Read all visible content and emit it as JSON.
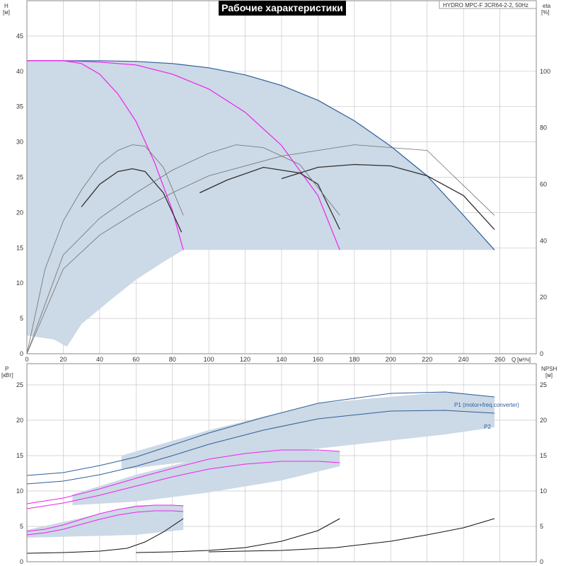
{
  "title": "Рабочие характеристики",
  "model": "HYDRO MPC-F 3CR64-2-2, 50Hz",
  "colors": {
    "envelope": "#ccd9e6",
    "max_curve": "#2f5f9a",
    "partial_speed": "#ee22ee",
    "efficiency": "#303030",
    "npsh": "#111111",
    "grid": "#c8c8c8"
  },
  "chart_data": [
    {
      "type": "line",
      "title": "Рабочие характеристики",
      "ylabel": "H",
      "yunit": "[м]",
      "y2label": "eta",
      "y2unit": "[%]",
      "xlabel": "Q",
      "xunit": "[м³/ч]",
      "xlim": [
        0,
        280
      ],
      "ylim": [
        0,
        50
      ],
      "y2lim": [
        0,
        125
      ],
      "xticks": [
        "0",
        "20",
        "40",
        "60",
        "80",
        "100",
        "120",
        "140",
        "160",
        "180",
        "200",
        "220",
        "240",
        "260"
      ],
      "yticks": [
        "0",
        "5",
        "10",
        "15",
        "20",
        "25",
        "30",
        "35",
        "40",
        "45"
      ],
      "y2ticks": [
        "0",
        "20",
        "40",
        "60",
        "80",
        "100"
      ],
      "grid": true,
      "series": [
        {
          "role": "head-3-pumps",
          "color": "max_curve",
          "x": [
            0,
            20,
            40,
            60,
            80,
            100,
            120,
            140,
            160,
            180,
            200,
            220,
            240,
            257
          ],
          "y": [
            41.5,
            41.5,
            41.5,
            41.4,
            41.1,
            40.5,
            39.5,
            38,
            35.9,
            33,
            29.4,
            25.2,
            19.6,
            14.7
          ]
        },
        {
          "role": "head-2-pumps",
          "color": "partial_speed",
          "x": [
            0,
            20,
            40,
            60,
            80,
            100,
            120,
            140,
            160,
            172
          ],
          "y": [
            41.5,
            41.5,
            41.3,
            40.9,
            39.6,
            37.5,
            34.2,
            29.5,
            22.4,
            14.7
          ]
        },
        {
          "role": "head-1-pump",
          "color": "partial_speed",
          "x": [
            0,
            20,
            30,
            40,
            50,
            60,
            70,
            80,
            86
          ],
          "y": [
            41.5,
            41.5,
            41.1,
            39.6,
            36.8,
            32.9,
            27.2,
            20.3,
            14.7
          ]
        },
        {
          "role": "eta-1-pump",
          "color": "efficiency",
          "x": [
            30,
            40,
            50,
            58,
            65,
            75,
            85
          ],
          "y": [
            52,
            60,
            64.5,
            65.5,
            64.5,
            57,
            43
          ]
        },
        {
          "role": "eta-2-pumps",
          "color": "efficiency",
          "x": [
            95,
            110,
            130,
            150,
            160,
            172
          ],
          "y": [
            57,
            61.5,
            66,
            64,
            60,
            44
          ]
        },
        {
          "role": "eta-3-pumps",
          "color": "efficiency",
          "x": [
            140,
            160,
            180,
            200,
            220,
            240,
            257
          ],
          "y": [
            62,
            66,
            67,
            66.5,
            63,
            56,
            44
          ]
        },
        {
          "role": "eta-1-pump-alt",
          "color": "efficiency",
          "x": [
            0,
            10,
            20,
            30,
            40,
            50,
            58,
            65,
            75,
            86
          ],
          "y": [
            0,
            30,
            47,
            58,
            67,
            72,
            74,
            73.5,
            66,
            49
          ]
        },
        {
          "role": "eta-2-pumps-alt",
          "color": "efficiency",
          "x": [
            0,
            20,
            40,
            60,
            80,
            100,
            115,
            130,
            150,
            172
          ],
          "y": [
            0,
            35,
            48,
            57,
            65,
            71,
            74,
            73,
            67,
            49
          ]
        },
        {
          "role": "eta-3-pumps-alt",
          "color": "efficiency",
          "x": [
            0,
            20,
            40,
            60,
            80,
            100,
            140,
            180,
            220,
            257
          ],
          "y": [
            0,
            30,
            42,
            50,
            57,
            63,
            70,
            74,
            72,
            49
          ]
        }
      ]
    },
    {
      "type": "line",
      "ylabel": "P",
      "yunit": "[кВт]",
      "y2label": "NPSH",
      "y2unit": "[м]",
      "xlim": [
        0,
        280
      ],
      "ylim": [
        0,
        28
      ],
      "y2lim": [
        0,
        28
      ],
      "yticks": [
        "0",
        "5",
        "10",
        "15",
        "20",
        "25"
      ],
      "y2ticks": [
        "0",
        "5",
        "10",
        "15",
        "20",
        "25"
      ],
      "grid": true,
      "series": [
        {
          "name": "P1 (motor+freq.converter)",
          "color": "max_curve",
          "x": [
            0,
            20,
            40,
            60,
            80,
            100,
            130,
            160,
            200,
            230,
            257
          ],
          "y": [
            12.2,
            12.6,
            13.6,
            14.8,
            16.5,
            18.2,
            20.4,
            22.4,
            23.8,
            24,
            23.3
          ]
        },
        {
          "name": "P2",
          "color": "max_curve",
          "x": [
            0,
            20,
            40,
            60,
            80,
            100,
            130,
            160,
            200,
            230,
            257
          ],
          "y": [
            11,
            11.4,
            12.3,
            13.5,
            15,
            16.6,
            18.6,
            20.2,
            21.3,
            21.4,
            21
          ]
        },
        {
          "role": "P1-2-pumps",
          "color": "partial_speed",
          "x": [
            0,
            20,
            40,
            60,
            80,
            100,
            120,
            140,
            160,
            172
          ],
          "y": [
            8.2,
            9,
            10.3,
            11.8,
            13.2,
            14.5,
            15.3,
            15.8,
            15.8,
            15.6
          ]
        },
        {
          "role": "P2-2-pumps",
          "color": "partial_speed",
          "x": [
            0,
            20,
            40,
            60,
            80,
            100,
            120,
            140,
            160,
            172
          ],
          "y": [
            7.5,
            8.3,
            9.4,
            10.7,
            12,
            13.1,
            13.8,
            14.2,
            14.2,
            14
          ]
        },
        {
          "role": "P1-1-pump",
          "color": "partial_speed",
          "x": [
            0,
            10,
            20,
            30,
            40,
            50,
            60,
            70,
            80,
            86
          ],
          "y": [
            4.3,
            4.6,
            5.2,
            6,
            6.8,
            7.4,
            7.8,
            8,
            8,
            7.9
          ]
        },
        {
          "role": "P2-1-pump",
          "color": "partial_speed",
          "x": [
            0,
            10,
            20,
            30,
            40,
            50,
            60,
            70,
            80,
            86
          ],
          "y": [
            3.8,
            4.1,
            4.6,
            5.3,
            6,
            6.6,
            7,
            7.2,
            7.2,
            7.1
          ]
        },
        {
          "role": "npsh-1-pump",
          "color": "npsh",
          "x": [
            0,
            20,
            40,
            55,
            65,
            75,
            86
          ],
          "y": [
            1.2,
            1.3,
            1.5,
            1.9,
            2.8,
            4.2,
            6.1
          ]
        },
        {
          "role": "npsh-2-pumps",
          "color": "npsh",
          "x": [
            60,
            80,
            100,
            120,
            140,
            160,
            172
          ],
          "y": [
            1.3,
            1.4,
            1.6,
            2,
            2.9,
            4.4,
            6.1
          ]
        },
        {
          "role": "npsh-3-pumps",
          "color": "npsh",
          "x": [
            100,
            140,
            170,
            200,
            220,
            240,
            257
          ],
          "y": [
            1.4,
            1.6,
            2,
            2.9,
            3.8,
            4.8,
            6.1
          ]
        }
      ]
    }
  ]
}
